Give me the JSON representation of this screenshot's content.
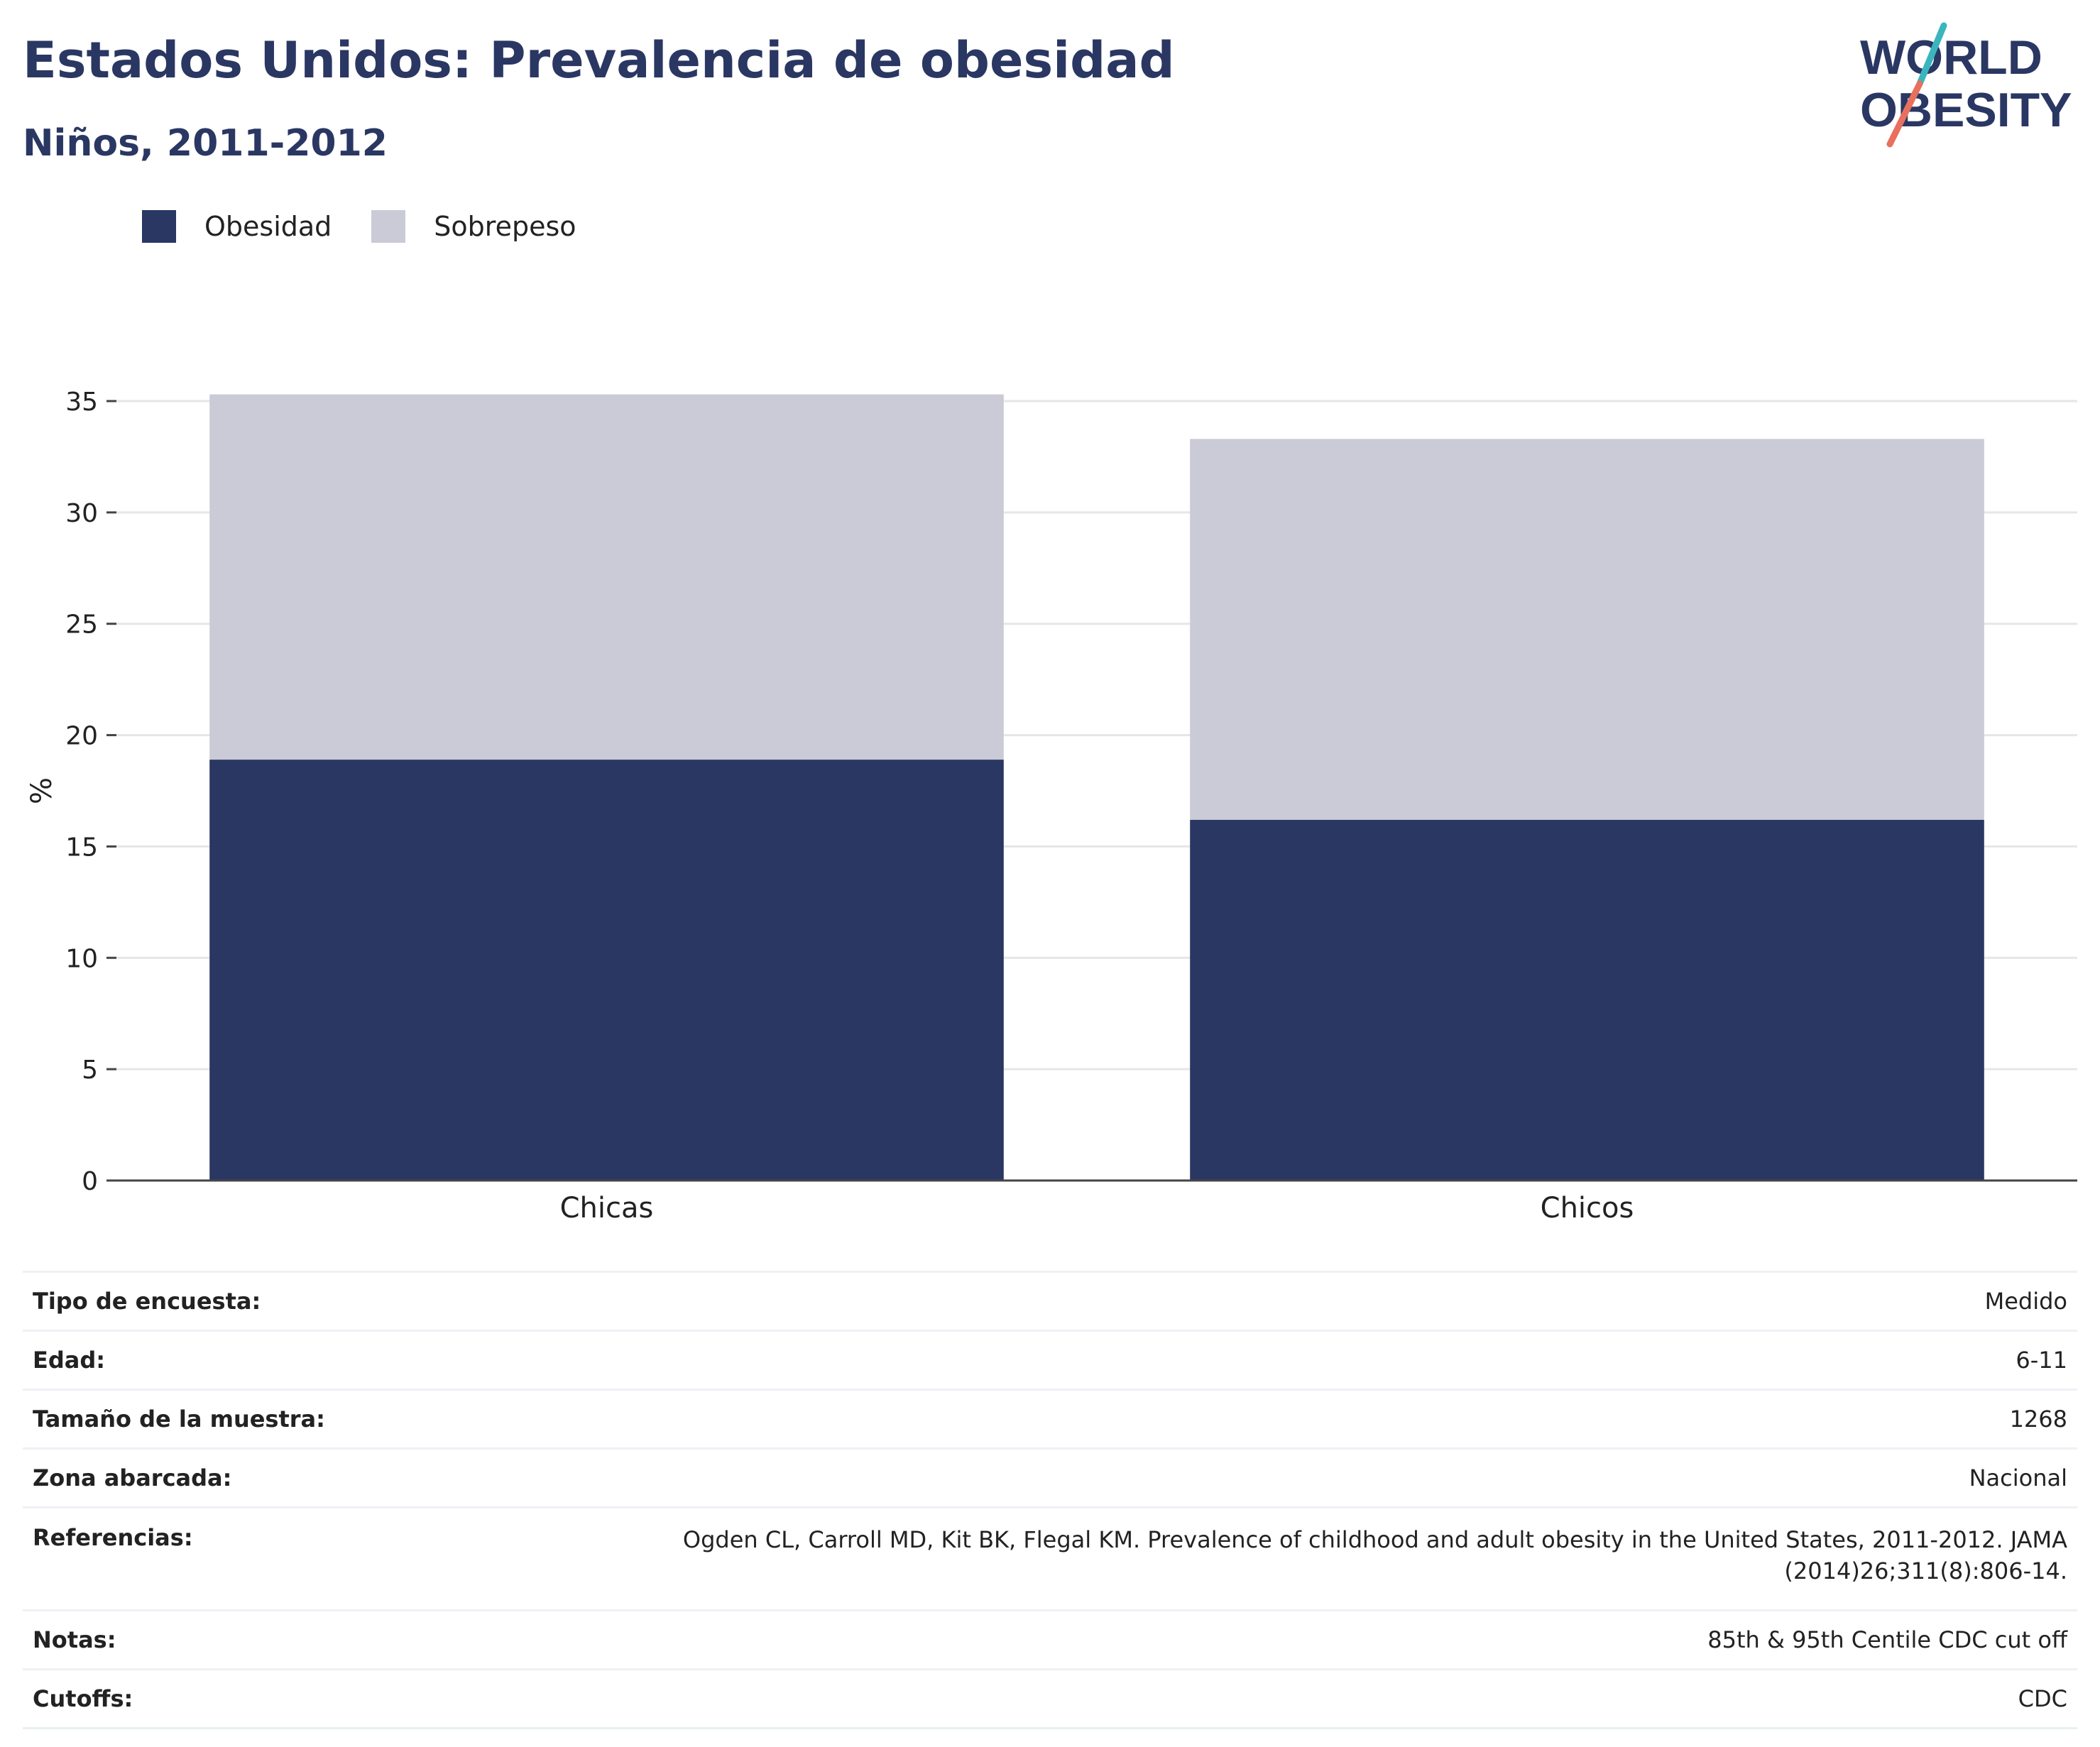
{
  "header": {
    "title": "Estados Unidos: Prevalencia de obesidad",
    "subtitle": "Niños, 2011-2012"
  },
  "logo": {
    "line1": "WORLD",
    "line2": "OBESITY"
  },
  "colors": {
    "obesity": "#2a3763",
    "overweight": "#cacbd7",
    "text": "#2a3763",
    "grid": "#e6e6e6",
    "axis": "#444444",
    "logo_teal": "#3bb5bd",
    "logo_coral": "#e8705e"
  },
  "chart_data": {
    "type": "bar",
    "stacked": true,
    "categories": [
      "Chicas",
      "Chicos"
    ],
    "series": [
      {
        "name": "Obesidad",
        "values": [
          18.9,
          16.2
        ]
      },
      {
        "name": "Sobrepeso",
        "values": [
          16.4,
          17.1
        ]
      }
    ],
    "ylabel": "%",
    "ylim": [
      0,
      35
    ],
    "yticks": [
      0,
      5,
      10,
      15,
      20,
      25,
      30,
      35
    ],
    "grid": true,
    "legend_position": "top-left"
  },
  "info": [
    {
      "key": "Tipo de encuesta:",
      "value": "Medido"
    },
    {
      "key": "Edad:",
      "value": "6-11"
    },
    {
      "key": "Tamaño de la muestra:",
      "value": "1268"
    },
    {
      "key": "Zona abarcada:",
      "value": "Nacional"
    },
    {
      "key": "Referencias:",
      "value": "Ogden CL, Carroll MD, Kit BK, Flegal KM. Prevalence of childhood and adult obesity in the United States, 2011-2012. JAMA (2014)26;311(8):806-14."
    },
    {
      "key": "Notas:",
      "value": "85th & 95th Centile CDC cut off"
    },
    {
      "key": "Cutoffs:",
      "value": "CDC"
    }
  ]
}
